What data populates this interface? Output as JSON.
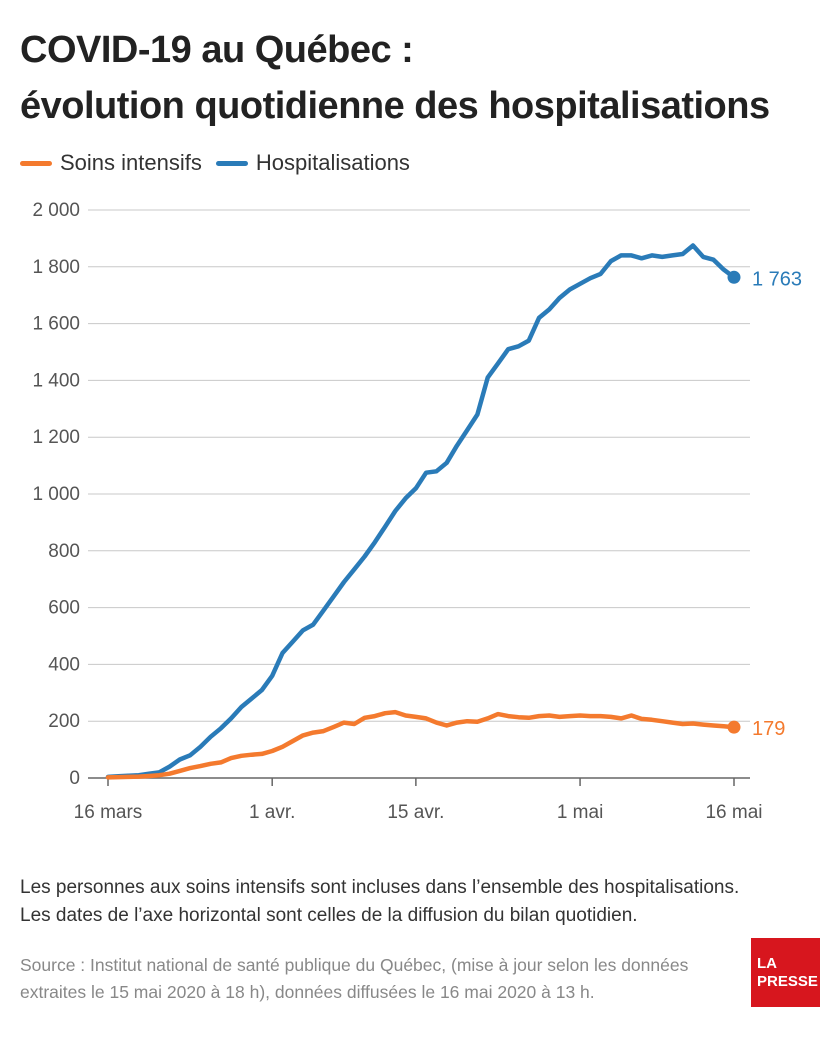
{
  "title_line1": "COVID-19 au Québec :",
  "title_line2": "évolution quotidienne des hospitalisations",
  "legend": [
    {
      "label": "Soins intensifs",
      "color": "#f47a2e"
    },
    {
      "label": "Hospitalisations",
      "color": "#2a7bb8"
    }
  ],
  "notes": {
    "line1": "Les personnes aux soins intensifs sont incluses dans l’ensemble des hospitalisations.",
    "line2": "Les dates de l’axe horizontal sont celles de la diffusion du bilan quotidien."
  },
  "source": {
    "line1": "Source : Institut national de santé publique du Québec, (mise à jour selon les données",
    "line2": "extraites le 15 mai 2020 à 18 h), données diffusées le 16 mai 2020 à 13 h."
  },
  "logo": {
    "line1": "LA",
    "line2": "PRESSE",
    "color": "#d7161e"
  },
  "chart_data": {
    "type": "line",
    "x_ticks": [
      {
        "date": "2020-03-16",
        "label": "16 mars"
      },
      {
        "date": "2020-04-01",
        "label": "1 avr."
      },
      {
        "date": "2020-04-15",
        "label": "15 avr."
      },
      {
        "date": "2020-05-01",
        "label": "1 mai"
      },
      {
        "date": "2020-05-16",
        "label": "16 mai"
      }
    ],
    "y_ticks": [
      {
        "value": 0,
        "label": "0"
      },
      {
        "value": 200,
        "label": "200"
      },
      {
        "value": 400,
        "label": "400"
      },
      {
        "value": 600,
        "label": "600"
      },
      {
        "value": 800,
        "label": "800"
      },
      {
        "value": 1000,
        "label": "1 000"
      },
      {
        "value": 1200,
        "label": "1 200"
      },
      {
        "value": 1400,
        "label": "1 400"
      },
      {
        "value": 1600,
        "label": "1 600"
      },
      {
        "value": 1800,
        "label": "1 800"
      },
      {
        "value": 2000,
        "label": "2 000"
      }
    ],
    "ylim": [
      0,
      2000
    ],
    "xlim": [
      "2020-03-16",
      "2020-05-16"
    ],
    "grid": "horizontal",
    "x": [
      "2020-03-16",
      "2020-03-17",
      "2020-03-18",
      "2020-03-19",
      "2020-03-20",
      "2020-03-21",
      "2020-03-22",
      "2020-03-23",
      "2020-03-24",
      "2020-03-25",
      "2020-03-26",
      "2020-03-27",
      "2020-03-28",
      "2020-03-29",
      "2020-03-30",
      "2020-03-31",
      "2020-04-01",
      "2020-04-02",
      "2020-04-03",
      "2020-04-04",
      "2020-04-05",
      "2020-04-06",
      "2020-04-07",
      "2020-04-08",
      "2020-04-09",
      "2020-04-10",
      "2020-04-11",
      "2020-04-12",
      "2020-04-13",
      "2020-04-14",
      "2020-04-15",
      "2020-04-16",
      "2020-04-17",
      "2020-04-18",
      "2020-04-19",
      "2020-04-20",
      "2020-04-21",
      "2020-04-22",
      "2020-04-23",
      "2020-04-24",
      "2020-04-25",
      "2020-04-26",
      "2020-04-27",
      "2020-04-28",
      "2020-04-29",
      "2020-04-30",
      "2020-05-01",
      "2020-05-02",
      "2020-05-03",
      "2020-05-04",
      "2020-05-05",
      "2020-05-06",
      "2020-05-07",
      "2020-05-08",
      "2020-05-09",
      "2020-05-10",
      "2020-05-11",
      "2020-05-12",
      "2020-05-13",
      "2020-05-14",
      "2020-05-15",
      "2020-05-16"
    ],
    "series": [
      {
        "name": "Hospitalisations",
        "color": "#2a7bb8",
        "end_label": "1 763",
        "values": [
          4,
          6,
          8,
          10,
          15,
          20,
          40,
          65,
          80,
          110,
          145,
          175,
          210,
          250,
          280,
          310,
          360,
          440,
          480,
          520,
          540,
          590,
          640,
          690,
          735,
          780,
          830,
          885,
          940,
          985,
          1020,
          1075,
          1080,
          1110,
          1170,
          1225,
          1280,
          1410,
          1460,
          1510,
          1520,
          1540,
          1620,
          1650,
          1690,
          1720,
          1740,
          1760,
          1775,
          1820,
          1840,
          1840,
          1830,
          1840,
          1835,
          1840,
          1845,
          1875,
          1835,
          1825,
          1790,
          1763
        ]
      },
      {
        "name": "Soins intensifs",
        "color": "#f47a2e",
        "end_label": "179",
        "values": [
          2,
          3,
          4,
          5,
          7,
          10,
          15,
          25,
          35,
          42,
          50,
          55,
          70,
          78,
          82,
          85,
          95,
          110,
          130,
          150,
          160,
          165,
          180,
          195,
          190,
          212,
          218,
          228,
          232,
          220,
          215,
          210,
          195,
          185,
          195,
          200,
          198,
          210,
          225,
          218,
          214,
          212,
          218,
          220,
          215,
          218,
          220,
          218,
          218,
          215,
          210,
          220,
          208,
          205,
          200,
          195,
          190,
          192,
          188,
          185,
          182,
          179
        ]
      }
    ]
  }
}
